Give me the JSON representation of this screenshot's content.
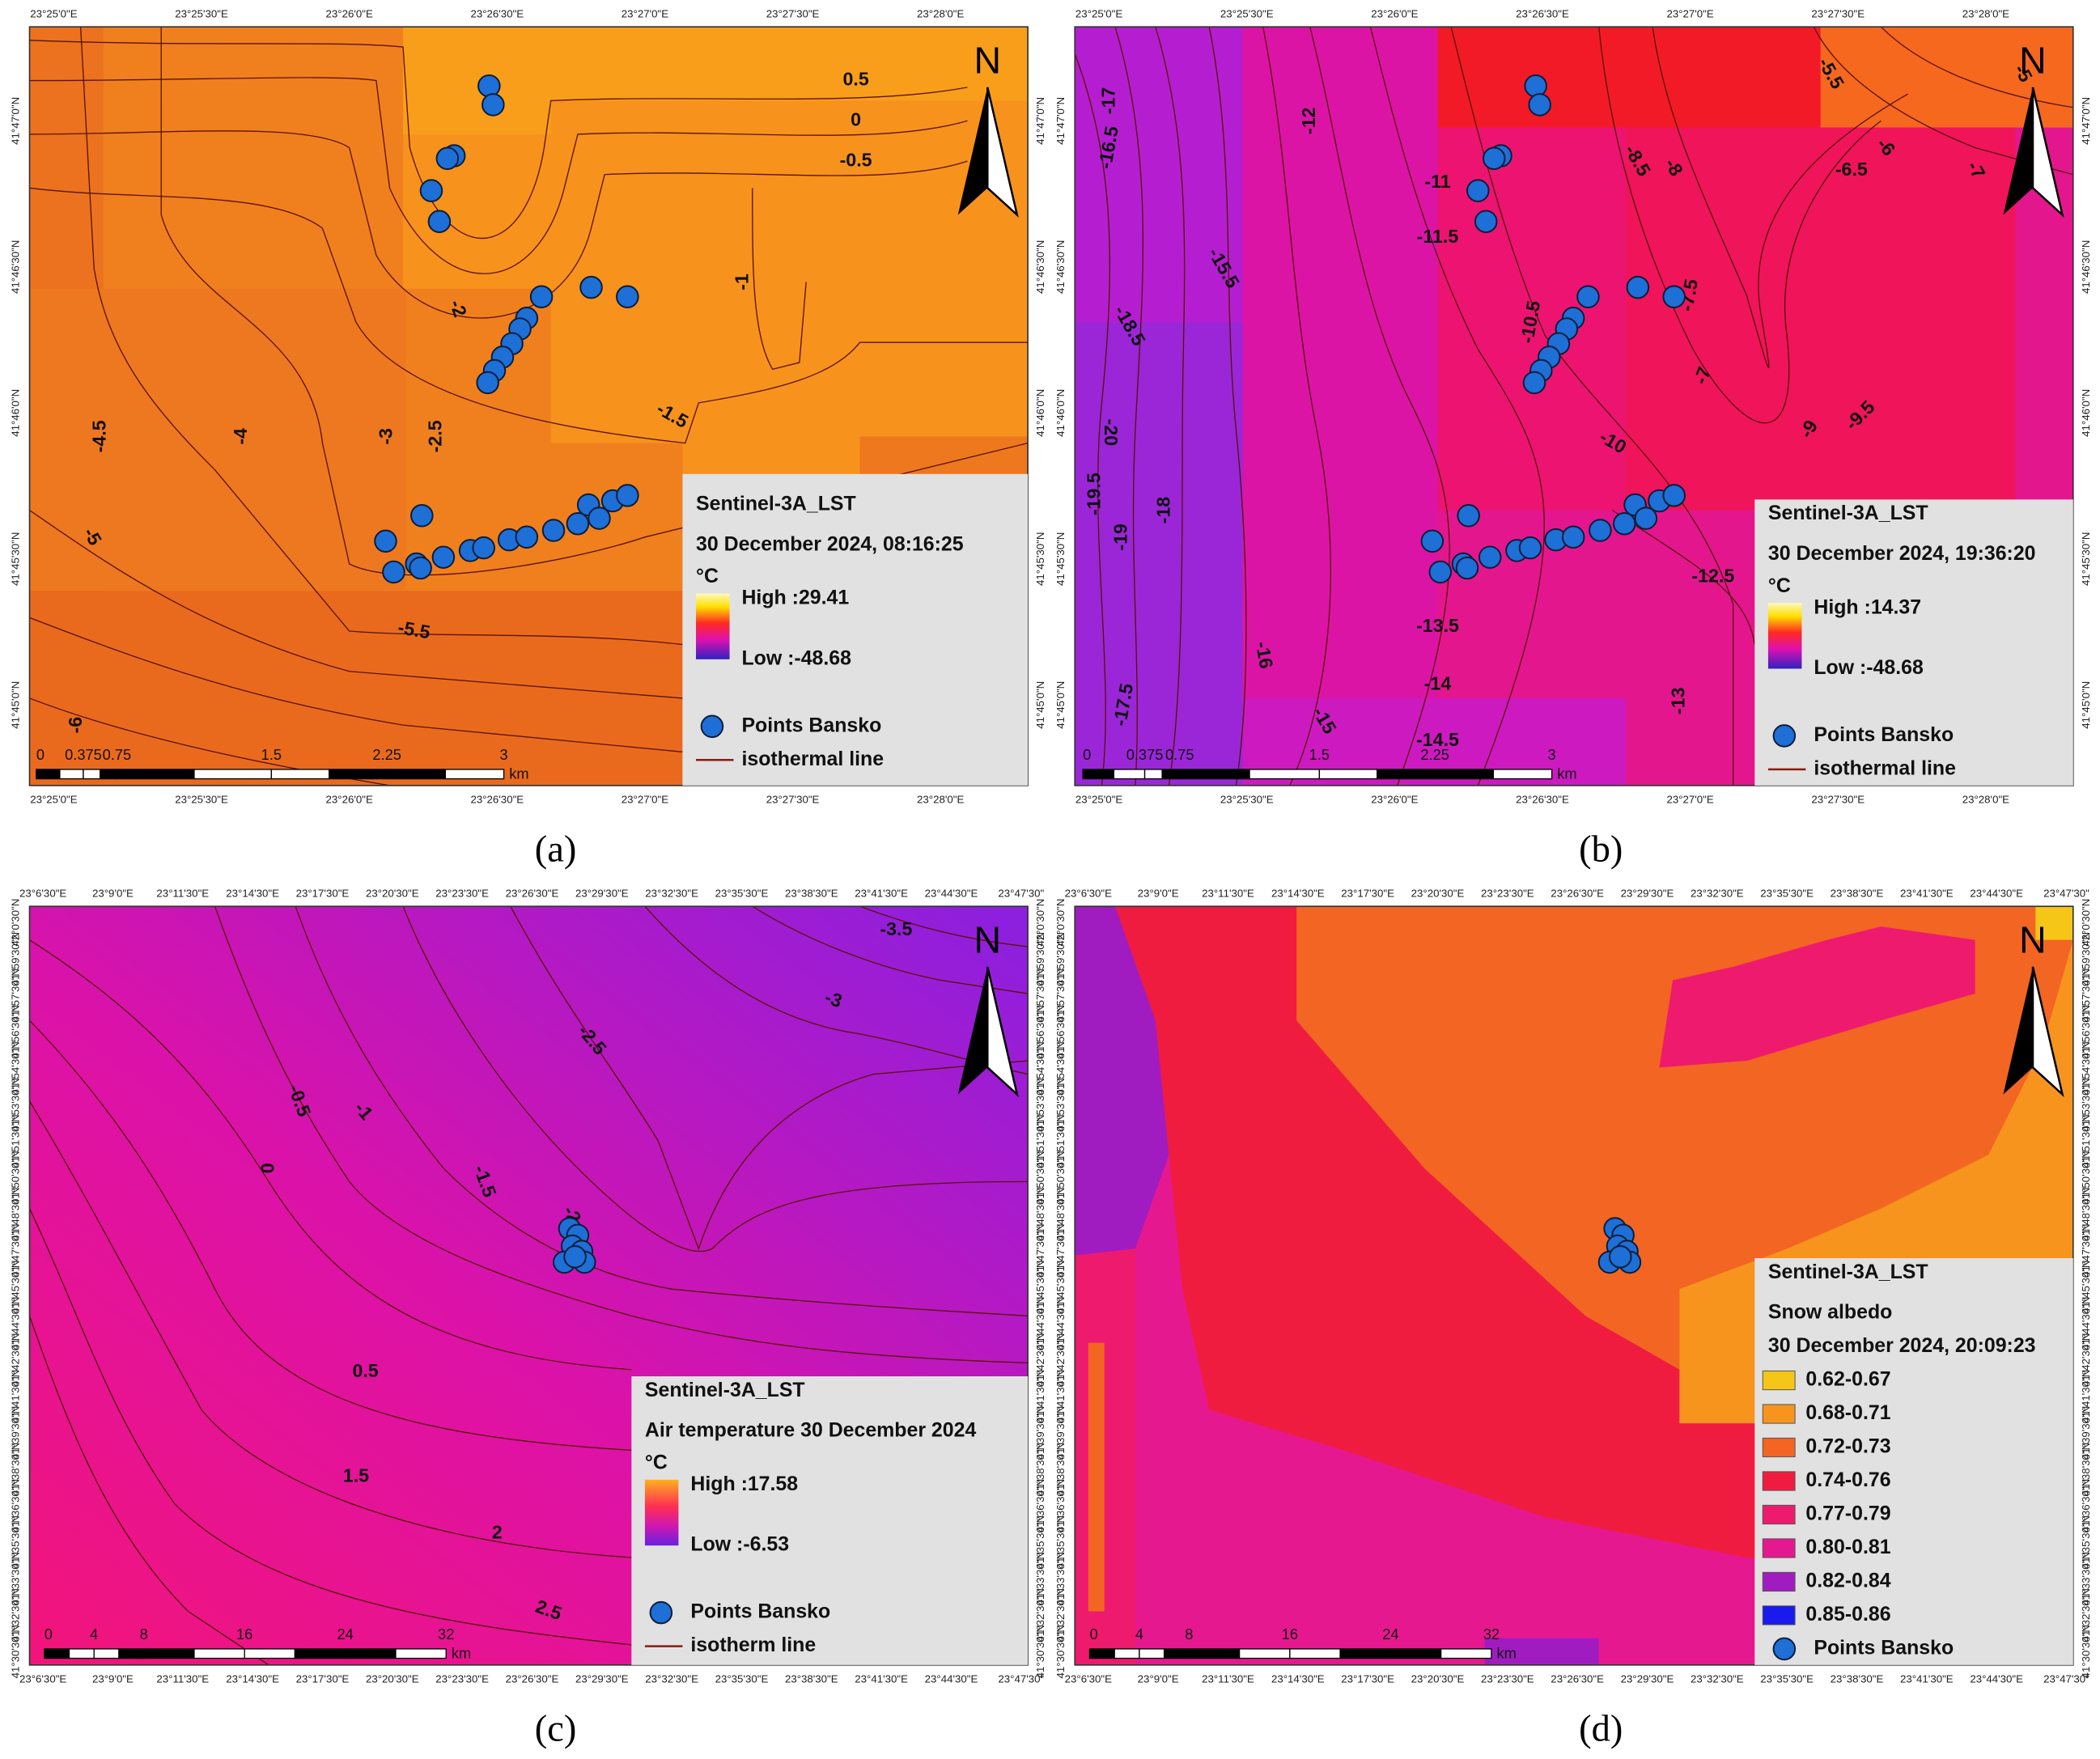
{
  "north_label": "N",
  "panels": [
    {
      "caption": "(a)",
      "lon_ticks": [
        "23°25'0\"E",
        "23°25'30\"E",
        "23°26'0\"E",
        "23°26'30\"E",
        "23°27'0\"E",
        "23°27'30\"E",
        "23°28'0\"E"
      ],
      "lat_ticks": [
        "41°47'0\"N",
        "41°46'30\"N",
        "41°46'0\"N",
        "41°45'30\"N",
        "41°45'0\"N"
      ],
      "contour_labels": [
        "0.5",
        "0",
        "-0.5",
        "-1",
        "-2",
        "-1.5",
        "-2.5",
        "-3",
        "-4",
        "-4.5",
        "-5",
        "-5.5",
        "-6"
      ],
      "legend": {
        "title": "Sentinel-3A_LST",
        "subtitles": [
          "30 December 2024, 08:16:25"
        ],
        "unit": "°C",
        "high": "High :29.41",
        "low": "Low :-48.68",
        "points_label": "Points Bansko",
        "line_label": "isothermal line"
      },
      "scale": {
        "labels": [
          "0",
          "0.375",
          "0.75",
          "1.5",
          "2.25",
          "3"
        ],
        "unit": "km"
      }
    },
    {
      "caption": "(b)",
      "lon_ticks": [
        "23°25'0\"E",
        "23°25'30\"E",
        "23°26'0\"E",
        "23°26'30\"E",
        "23°27'0\"E",
        "23°27'30\"E",
        "23°28'0\"E"
      ],
      "lat_ticks": [
        "41°47'0\"N",
        "41°46'30\"N",
        "41°46'0\"N",
        "41°45'30\"N",
        "41°45'0\"N"
      ],
      "contour_labels": [
        "-5.5",
        "-5",
        "-17",
        "-16.5",
        "-12",
        "-11",
        "-8.5",
        "-8",
        "-6.5",
        "-6",
        "-7",
        "-15.5",
        "-11.5",
        "-18.5",
        "-10.5",
        "-7.5",
        "-7",
        "-20",
        "-10",
        "-9",
        "-9.5",
        "-19.5",
        "-18",
        "-19",
        "-12.5",
        "-13.5",
        "-16",
        "-14",
        "-13",
        "-17.5",
        "-15",
        "-14.5"
      ],
      "legend": {
        "title": "Sentinel-3A_LST",
        "subtitles": [
          "30 December 2024, 19:36:20"
        ],
        "unit": "°C",
        "high": "High :14.37",
        "low": "Low :-48.68",
        "points_label": "Points Bansko",
        "line_label": "isothermal line"
      },
      "scale": {
        "labels": [
          "0",
          "0.375",
          "0.75",
          "1.5",
          "2.25",
          "3"
        ],
        "unit": "km"
      }
    },
    {
      "caption": "(c)",
      "lon_ticks": [
        "23°6'30\"E",
        "23°9'0\"E",
        "23°11'30\"E",
        "23°14'30\"E",
        "23°17'30\"E",
        "23°20'30\"E",
        "23°23'30\"E",
        "23°26'30\"E",
        "23°29'30\"E",
        "23°32'30\"E",
        "23°35'30\"E",
        "23°38'30\"E",
        "23°41'30\"E",
        "23°44'30\"E",
        "23°47'30\""
      ],
      "lat_ticks": [
        "42°0'30\"N",
        "41°59'30\"N",
        "41°57'30\"N",
        "41°56'30\"N",
        "41°54'30\"N",
        "41°53'30\"N",
        "41°51'30\"N",
        "41°50'30\"N",
        "41°48'30\"N",
        "41°47'30\"N",
        "41°45'30\"N",
        "41°44'30\"N",
        "41°42'30\"N",
        "41°41'30\"N",
        "41°39'30\"N",
        "41°38'30\"N",
        "41°36'30\"N",
        "41°35'30\"N",
        "41°33'30\"N",
        "41°32'30\"N",
        "41°30'30\"N"
      ],
      "contour_labels": [
        "-3.5",
        "-3",
        "-2.5",
        "-0.5",
        "-1",
        "0",
        "-1.5",
        "-2",
        "0.5",
        "1.5",
        "2",
        "2.5"
      ],
      "legend": {
        "title": "Sentinel-3A_LST",
        "subtitles": [
          "Air temperature 30 December 2024"
        ],
        "unit": "°C",
        "high": "High :17.58",
        "low": "Low :-6.53",
        "points_label": "Points Bansko",
        "line_label": "isotherm line"
      },
      "scale": {
        "labels": [
          "0",
          "4",
          "8",
          "16",
          "24",
          "32"
        ],
        "unit": "km"
      }
    },
    {
      "caption": "(d)",
      "lon_ticks": [
        "23°6'30\"E",
        "23°9'0\"E",
        "23°11'30\"E",
        "23°14'30\"E",
        "23°17'30\"E",
        "23°20'30\"E",
        "23°23'30\"E",
        "23°26'30\"E",
        "23°29'30\"E",
        "23°32'30\"E",
        "23°35'30\"E",
        "23°38'30\"E",
        "23°41'30\"E",
        "23°44'30\"E",
        "23°47'30\""
      ],
      "lat_ticks": [
        "42°0'30\"N",
        "41°59'30\"N",
        "41°57'30\"N",
        "41°56'30\"N",
        "41°54'30\"N",
        "41°53'30\"N",
        "41°51'30\"N",
        "41°50'30\"N",
        "41°48'30\"N",
        "41°47'30\"N",
        "41°45'30\"N",
        "41°44'30\"N",
        "41°42'30\"N",
        "41°41'30\"N",
        "41°39'30\"N",
        "41°38'30\"N",
        "41°36'30\"N",
        "41°35'30\"N",
        "41°33'30\"N",
        "41°32'30\"N",
        "41°30'30\"N"
      ],
      "contour_labels": [],
      "legend": {
        "title": "Sentinel-3A_LST",
        "subtitles": [
          "Snow albedo",
          "30 December 2024, 20:09:23"
        ],
        "classes": [
          {
            "label": "0.62-0.67",
            "color": "#f5c518"
          },
          {
            "label": "0.68-0.71",
            "color": "#f7941d"
          },
          {
            "label": "0.72-0.73",
            "color": "#f26522"
          },
          {
            "label": "0.74-0.76",
            "color": "#ef1c40"
          },
          {
            "label": "0.77-0.79",
            "color": "#ee1a6e"
          },
          {
            "label": "0.80-0.81",
            "color": "#e6188f"
          },
          {
            "label": "0.82-0.84",
            "color": "#a11cc0"
          },
          {
            "label": "0.85-0.86",
            "color": "#1a1aee"
          }
        ],
        "points_label": "Points Bansko"
      },
      "scale": {
        "labels": [
          "0",
          "4",
          "8",
          "16",
          "24",
          "32"
        ],
        "unit": "km"
      }
    }
  ]
}
